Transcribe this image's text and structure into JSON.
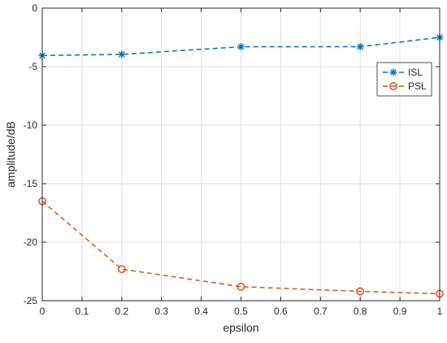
{
  "chart_data": {
    "type": "line",
    "title": "",
    "xlabel": "epsilon",
    "ylabel": "amplitude/dB",
    "xlim": [
      0,
      1
    ],
    "ylim": [
      -25,
      0
    ],
    "xticks": [
      0,
      0.1,
      0.2,
      0.3,
      0.4,
      0.5,
      0.6,
      0.7,
      0.8,
      0.9,
      1
    ],
    "xtick_labels": [
      "0",
      "0.1",
      "0.2",
      "0.3",
      "0.4",
      "0.5",
      "0.6",
      "0.7",
      "0.8",
      "0.9",
      "1"
    ],
    "yticks": [
      0,
      -5,
      -10,
      -15,
      -20,
      -25
    ],
    "ytick_labels": [
      "0",
      "-5",
      "-10",
      "-15",
      "-20",
      "-25"
    ],
    "grid": true,
    "legend_position": "top-right",
    "x": [
      0,
      0.2,
      0.5,
      0.8,
      1
    ],
    "series": [
      {
        "name": "ISL",
        "color": "#0072bd",
        "marker": "asterisk",
        "line_style": "dashed",
        "values": [
          -4.05,
          -3.95,
          -3.3,
          -3.3,
          -2.5
        ]
      },
      {
        "name": "PSL",
        "color": "#d95319",
        "marker": "circle",
        "line_style": "dashed",
        "values": [
          -16.5,
          -22.3,
          -23.8,
          -24.2,
          -24.4
        ]
      }
    ]
  }
}
